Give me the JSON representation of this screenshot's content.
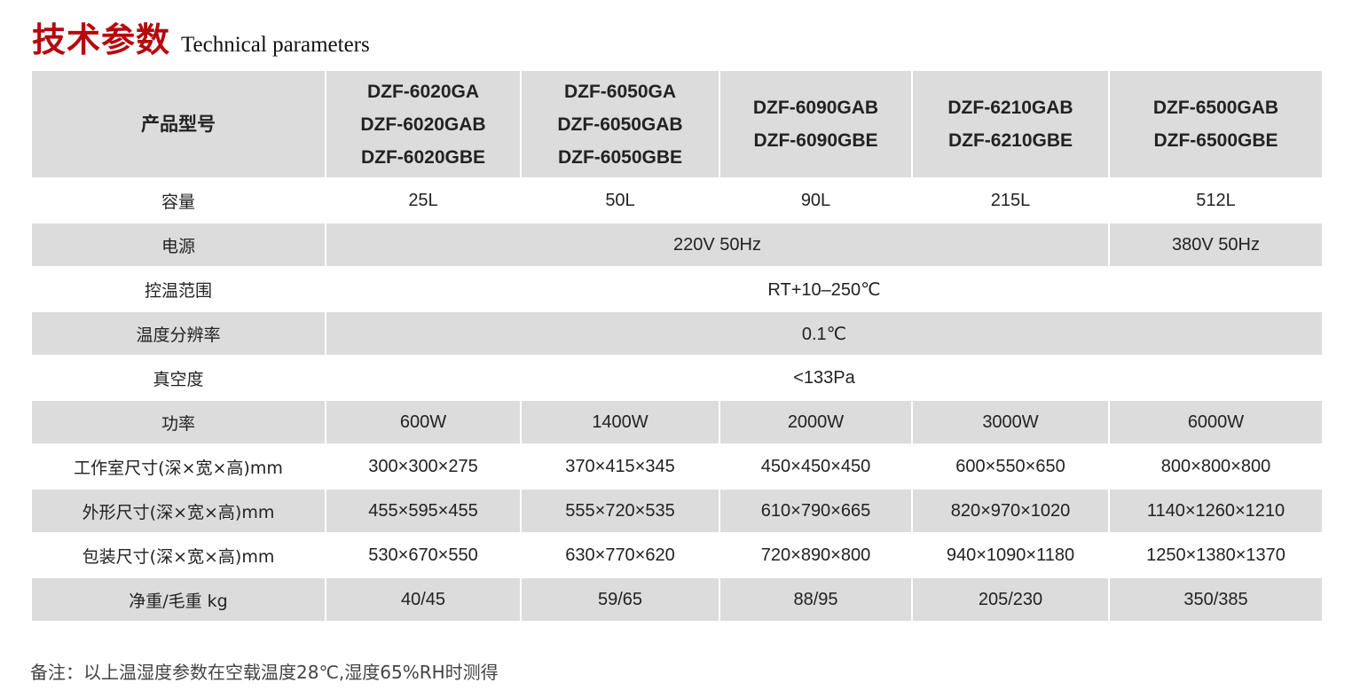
{
  "title": {
    "cn": "技术参数",
    "en": "Technical parameters",
    "color": "#b5090e"
  },
  "header": {
    "label": "产品型号",
    "models": [
      [
        "DZF-6020GA",
        "DZF-6020GAB",
        "DZF-6020GBE"
      ],
      [
        "DZF-6050GA",
        "DZF-6050GAB",
        "DZF-6050GBE"
      ],
      [
        "DZF-6090GAB",
        "DZF-6090GBE"
      ],
      [
        "DZF-6210GAB",
        "DZF-6210GBE"
      ],
      [
        "DZF-6500GAB",
        "DZF-6500GBE"
      ]
    ]
  },
  "rows": {
    "capacity": {
      "label": "容量",
      "values": [
        "25L",
        "50L",
        "90L",
        "215L",
        "512L"
      ]
    },
    "power_supply": {
      "label": "电源",
      "values": [
        "220V 50Hz",
        "380V  50Hz"
      ]
    },
    "temp_range": {
      "label": "控温范围",
      "value": "RT+10–250℃"
    },
    "temp_resolution": {
      "label": "温度分辨率",
      "value": "0.1℃"
    },
    "vacuum": {
      "label": "真空度",
      "value": "<133Pa"
    },
    "power": {
      "label": "功率",
      "values": [
        "600W",
        "1400W",
        "2000W",
        "3000W",
        "6000W"
      ]
    },
    "chamber_size": {
      "label": "工作室尺寸(深×宽×高)mm",
      "values": [
        "300×300×275",
        "370×415×345",
        "450×450×450",
        "600×550×650",
        "800×800×800"
      ]
    },
    "outer_size": {
      "label": "外形尺寸(深×宽×高)mm",
      "values": [
        "455×595×455",
        "555×720×535",
        "610×790×665",
        "820×970×1020",
        "1140×1260×1210"
      ]
    },
    "package_size": {
      "label": "包装尺寸(深×宽×高)mm",
      "values": [
        "530×670×550",
        "630×770×620",
        "720×890×800",
        "940×1090×1180",
        "1250×1380×1370"
      ]
    },
    "weight": {
      "label": "净重/毛重 kg",
      "values": [
        "40/45",
        "59/65",
        "88/95",
        "205/230",
        "350/385"
      ]
    }
  },
  "note": "备注：以上温湿度参数在空载温度28℃,湿度65%RH时测得"
}
